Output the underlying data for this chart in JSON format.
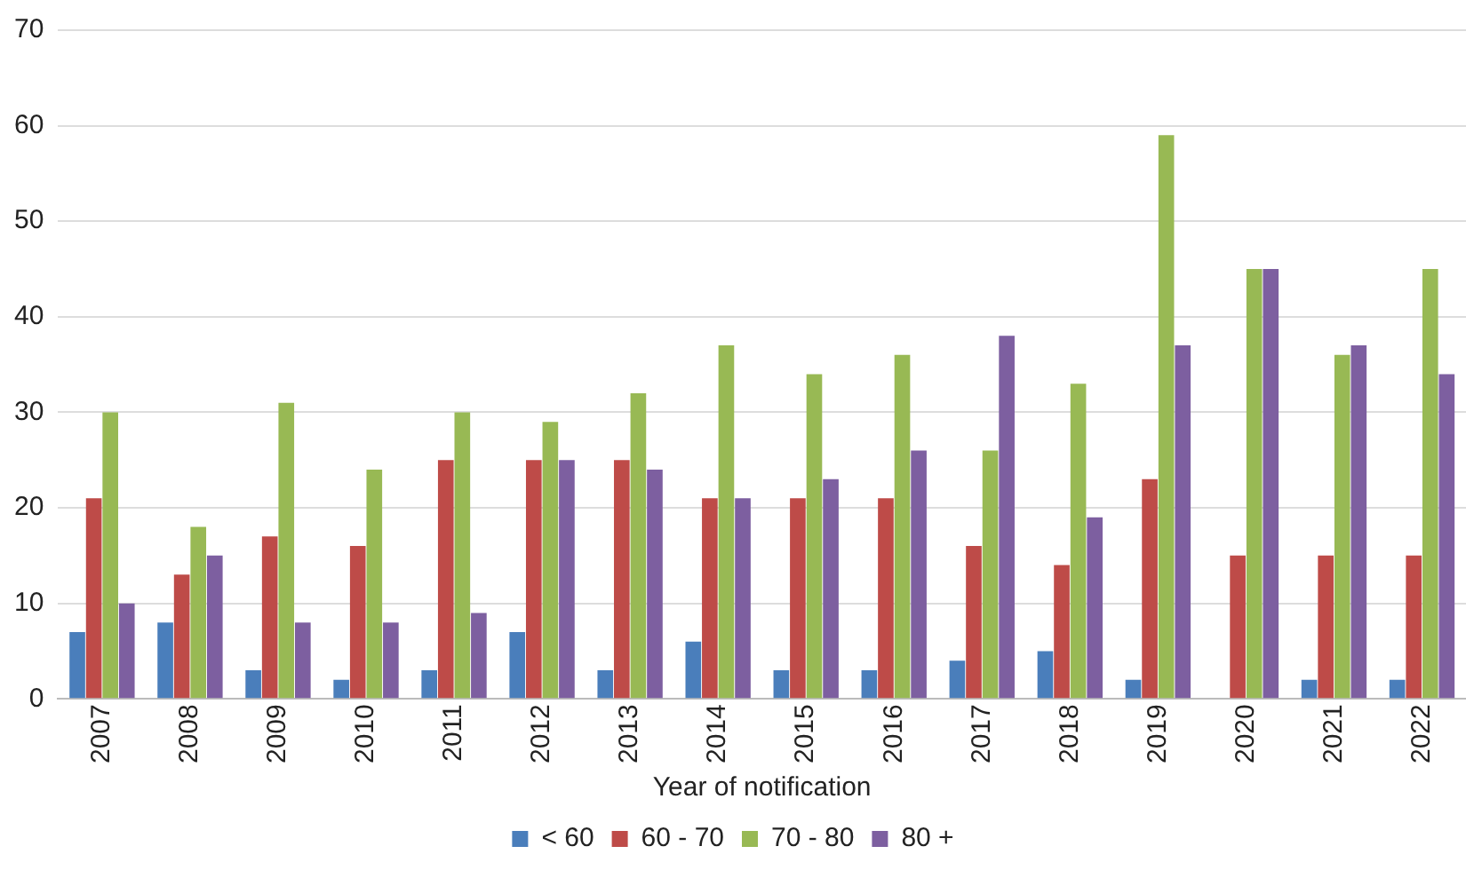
{
  "chart_data": {
    "type": "bar",
    "xlabel": "Year of notification",
    "categories": [
      "2007",
      "2008",
      "2009",
      "2010",
      "2011",
      "2012",
      "2013",
      "2014",
      "2015",
      "2016",
      "2017",
      "2018",
      "2019",
      "2020",
      "2021",
      "2022"
    ],
    "series": [
      {
        "name": "< 60",
        "color": "#4a7ebb",
        "values": [
          7,
          8,
          3,
          2,
          3,
          7,
          3,
          6,
          3,
          3,
          4,
          5,
          2,
          0,
          2,
          2
        ]
      },
      {
        "name": "60 - 70",
        "color": "#be4b48",
        "values": [
          21,
          13,
          17,
          16,
          25,
          25,
          25,
          21,
          21,
          21,
          16,
          14,
          23,
          15,
          15,
          15
        ]
      },
      {
        "name": "70 - 80",
        "color": "#98b954",
        "values": [
          30,
          18,
          31,
          24,
          30,
          29,
          32,
          37,
          34,
          36,
          26,
          33,
          59,
          45,
          36,
          45
        ]
      },
      {
        "name": "80 +",
        "color": "#7d5fa0",
        "values": [
          10,
          15,
          8,
          8,
          9,
          25,
          24,
          21,
          23,
          26,
          38,
          19,
          37,
          45,
          37,
          34
        ]
      }
    ],
    "ylim": [
      0,
      70
    ],
    "yticks": [
      0,
      10,
      20,
      30,
      40,
      50,
      60,
      70
    ],
    "grid": "y",
    "legend": "bottom"
  }
}
